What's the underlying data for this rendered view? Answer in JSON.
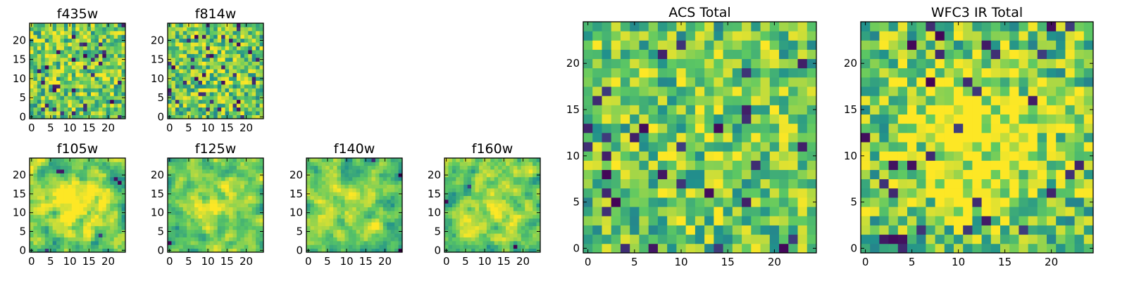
{
  "figure": {
    "panels": [
      {
        "id": "f435w",
        "title": "f435w",
        "xticks": [
          0,
          5,
          10,
          15,
          20
        ],
        "yticks": [
          0,
          5,
          10,
          15,
          20
        ],
        "seed": 11,
        "smooth": 0,
        "profile": 0.05
      },
      {
        "id": "f814w",
        "title": "f814w",
        "xticks": [
          0,
          5,
          10,
          15,
          20
        ],
        "yticks": [
          0,
          5,
          10,
          15,
          20
        ],
        "seed": 23,
        "smooth": 0,
        "profile": 0.08
      },
      {
        "id": "f105w",
        "title": "f105w",
        "xticks": [
          0,
          5,
          10,
          15,
          20
        ],
        "yticks": [
          0,
          5,
          10,
          15,
          20
        ],
        "seed": 37,
        "smooth": 1,
        "profile": 0.35
      },
      {
        "id": "f125w",
        "title": "f125w",
        "xticks": [
          0,
          5,
          10,
          15,
          20
        ],
        "yticks": [
          0,
          5,
          10,
          15,
          20
        ],
        "seed": 41,
        "smooth": 1,
        "profile": 0.25
      },
      {
        "id": "f140w",
        "title": "f140w",
        "xticks": [
          0,
          5,
          10,
          15,
          20
        ],
        "yticks": [
          0,
          5,
          10,
          15,
          20
        ],
        "seed": 53,
        "smooth": 1,
        "profile": 0.1
      },
      {
        "id": "f160w",
        "title": "f160w",
        "xticks": [
          0,
          5,
          10,
          15,
          20
        ],
        "yticks": [
          0,
          5,
          10,
          15,
          20
        ],
        "seed": 67,
        "smooth": 1,
        "profile": 0.15
      },
      {
        "id": "acs-total",
        "title": "ACS Total",
        "xticks": [
          0,
          5,
          10,
          15,
          20
        ],
        "yticks": [
          0,
          5,
          10,
          15,
          20
        ],
        "seed": 79,
        "smooth": 0,
        "profile": 0.05
      },
      {
        "id": "wfc3-ir-total",
        "title": "WFC3 IR Total",
        "xticks": [
          0,
          5,
          10,
          15,
          20
        ],
        "yticks": [
          0,
          5,
          10,
          15,
          20
        ],
        "seed": 97,
        "smooth": 0,
        "profile": 0.3
      }
    ]
  },
  "chart_data": {
    "type": "heatmap",
    "grid_size": [
      25,
      25
    ],
    "colormap": "viridis",
    "colormap_stops": [
      "#440154",
      "#3b528b",
      "#21918c",
      "#5ec962",
      "#fde725"
    ],
    "xlim": [
      -0.5,
      24.5
    ],
    "ylim": [
      -0.5,
      24.5
    ],
    "grid": false,
    "note_values": "pixel-noise images; cell values not labeled, rendered procedurally from panel seed"
  }
}
